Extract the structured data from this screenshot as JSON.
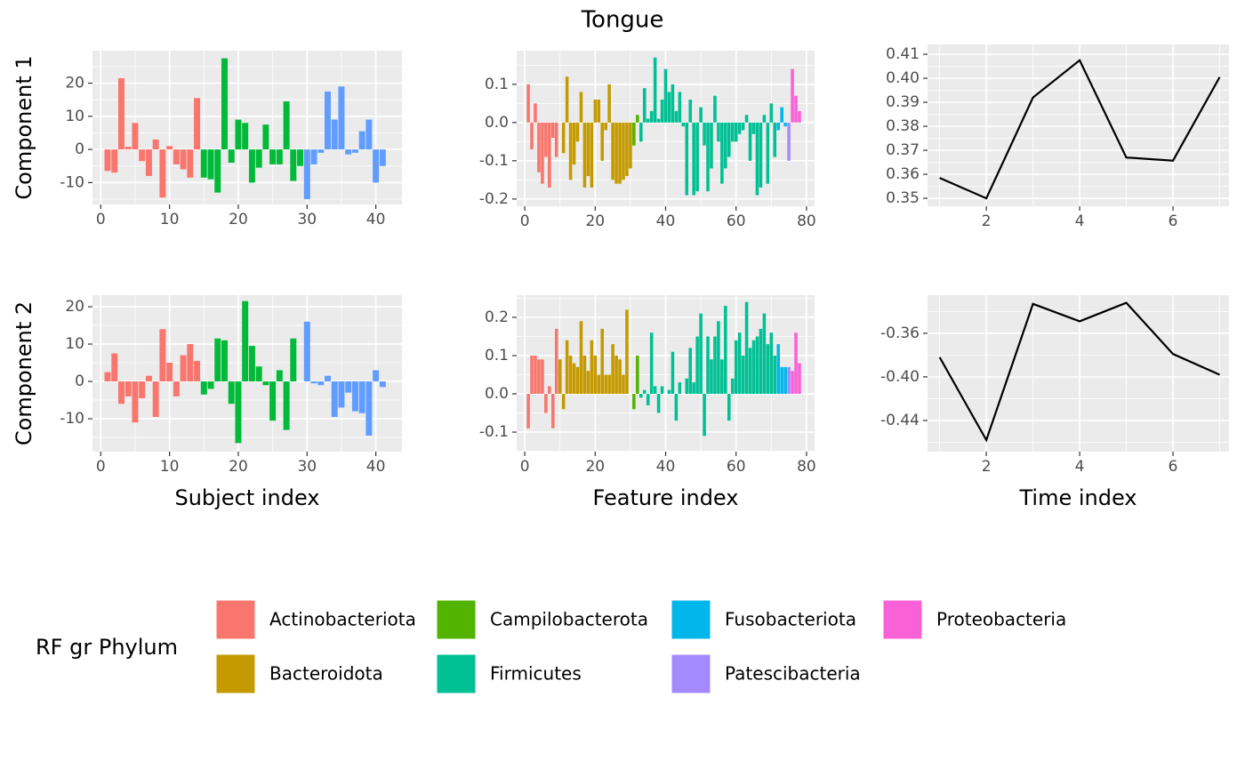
{
  "title": "Tongue",
  "legend": {
    "title": "RF gr Phylum",
    "items": [
      {
        "name": "Actinobacteriota",
        "color": "#F8766D"
      },
      {
        "name": "Bacteroidota",
        "color": "#C49A00"
      },
      {
        "name": "Campilobacterota",
        "color": "#53B400"
      },
      {
        "name": "Firmicutes",
        "color": "#00C094"
      },
      {
        "name": "Fusobacteriota",
        "color": "#00B6EB"
      },
      {
        "name": "Patescibacteria",
        "color": "#A58AFF"
      },
      {
        "name": "Proteobacteria",
        "color": "#FB61D7"
      }
    ]
  },
  "chart_data": [
    {
      "type": "bar",
      "ylabel": "Component 1",
      "x": [
        1,
        2,
        3,
        4,
        5,
        6,
        7,
        8,
        9,
        10,
        11,
        12,
        13,
        14,
        15,
        16,
        17,
        18,
        19,
        20,
        21,
        22,
        23,
        24,
        25,
        26,
        27,
        28,
        29,
        30,
        31,
        32,
        33,
        34,
        35,
        36,
        37,
        38,
        39,
        40,
        41
      ],
      "values": [
        -6.5,
        -7,
        21.5,
        0.8,
        8,
        -3.5,
        -8,
        3,
        -14.5,
        1,
        -4.5,
        -6,
        -8.5,
        15.5,
        -8.5,
        -9,
        -13,
        27.5,
        -4,
        9,
        8,
        -10,
        -5.5,
        7.5,
        -4.5,
        -4.5,
        14.5,
        -9.5,
        -5,
        -15,
        -4.5,
        -1,
        17.5,
        9,
        19,
        -1.5,
        -1,
        5.5,
        9,
        -10,
        -5
      ],
      "colors": [
        "#F8766D",
        "#F8766D",
        "#F8766D",
        "#F8766D",
        "#F8766D",
        "#F8766D",
        "#F8766D",
        "#F8766D",
        "#F8766D",
        "#F8766D",
        "#F8766D",
        "#F8766D",
        "#F8766D",
        "#F8766D",
        "#00BA38",
        "#00BA38",
        "#00BA38",
        "#00BA38",
        "#00BA38",
        "#00BA38",
        "#00BA38",
        "#00BA38",
        "#00BA38",
        "#00BA38",
        "#00BA38",
        "#00BA38",
        "#00BA38",
        "#00BA38",
        "#00BA38",
        "#619CFF",
        "#619CFF",
        "#619CFF",
        "#619CFF",
        "#619CFF",
        "#619CFF",
        "#619CFF",
        "#619CFF",
        "#619CFF",
        "#619CFF",
        "#619CFF",
        "#619CFF"
      ],
      "xlim": [
        -1.2,
        43.8
      ],
      "ylim": [
        -16.6,
        29.8
      ],
      "xticks": [
        0,
        10,
        20,
        30,
        40
      ],
      "yticks": [
        -10,
        0,
        10,
        20
      ],
      "grid": true
    },
    {
      "type": "bar",
      "x": [
        1,
        2,
        3,
        4,
        5,
        6,
        7,
        8,
        9,
        10,
        11,
        12,
        13,
        14,
        15,
        16,
        17,
        18,
        19,
        20,
        21,
        22,
        23,
        24,
        25,
        26,
        27,
        28,
        29,
        30,
        31,
        32,
        33,
        34,
        35,
        36,
        37,
        38,
        39,
        40,
        41,
        42,
        43,
        44,
        45,
        46,
        47,
        48,
        49,
        50,
        51,
        52,
        53,
        54,
        55,
        56,
        57,
        58,
        59,
        60,
        61,
        62,
        63,
        64,
        65,
        66,
        67,
        68,
        69,
        70,
        71,
        72,
        73,
        74,
        75,
        76,
        77,
        78
      ],
      "values": [
        0.1,
        -0.07,
        0.05,
        -0.13,
        -0.16,
        -0.09,
        -0.17,
        -0.04,
        -0.09,
        0.0,
        -0.08,
        0.12,
        -0.15,
        -0.11,
        -0.05,
        0.08,
        -0.17,
        -0.14,
        -0.17,
        0.06,
        0.06,
        -0.1,
        -0.02,
        0.1,
        -0.15,
        -0.16,
        -0.16,
        -0.15,
        -0.14,
        -0.12,
        -0.06,
        0.02,
        -0.05,
        0.09,
        0.01,
        0.03,
        0.17,
        0.01,
        0.06,
        0.14,
        0.08,
        0.1,
        0.03,
        0.08,
        -0.01,
        -0.19,
        0.06,
        -0.19,
        -0.18,
        0.04,
        -0.06,
        -0.18,
        -0.12,
        0.07,
        -0.05,
        -0.16,
        -0.12,
        -0.09,
        -0.05,
        -0.05,
        -0.03,
        -0.02,
        0.02,
        -0.1,
        -0.03,
        -0.19,
        -0.17,
        0.02,
        -0.16,
        0.05,
        -0.09,
        -0.02,
        0.04,
        -0.01,
        -0.1,
        0.14,
        0.07,
        0.03
      ],
      "colors": [
        "#F8766D",
        "#F8766D",
        "#F8766D",
        "#F8766D",
        "#F8766D",
        "#F8766D",
        "#F8766D",
        "#F8766D",
        "#F8766D",
        "#C49A00",
        "#C49A00",
        "#C49A00",
        "#C49A00",
        "#C49A00",
        "#C49A00",
        "#C49A00",
        "#C49A00",
        "#C49A00",
        "#C49A00",
        "#C49A00",
        "#C49A00",
        "#C49A00",
        "#C49A00",
        "#C49A00",
        "#C49A00",
        "#C49A00",
        "#C49A00",
        "#C49A00",
        "#C49A00",
        "#C49A00",
        "#53B400",
        "#53B400",
        "#00C094",
        "#00C094",
        "#00C094",
        "#00C094",
        "#00C094",
        "#00C094",
        "#00C094",
        "#00C094",
        "#00C094",
        "#00C094",
        "#00C094",
        "#00C094",
        "#00C094",
        "#00C094",
        "#00C094",
        "#00C094",
        "#00C094",
        "#00C094",
        "#00C094",
        "#00C094",
        "#00C094",
        "#00C094",
        "#00C094",
        "#00C094",
        "#00C094",
        "#00C094",
        "#00C094",
        "#00C094",
        "#00C094",
        "#00C094",
        "#00C094",
        "#00C094",
        "#00C094",
        "#00C094",
        "#00C094",
        "#00C094",
        "#00C094",
        "#00C094",
        "#00C094",
        "#00B6EB",
        "#00B6EB",
        "#00B6EB",
        "#A58AFF",
        "#FB61D7",
        "#FB61D7",
        "#FB61D7"
      ],
      "xlim": [
        -2.3,
        82.3
      ],
      "ylim": [
        -0.219,
        0.188
      ],
      "xticks": [
        0,
        20,
        40,
        60,
        80
      ],
      "yticks": [
        -0.2,
        -0.1,
        {
          "value": 0,
          "label": "0.0"
        },
        0.1
      ],
      "grid": true
    },
    {
      "type": "line",
      "x": [
        1,
        2,
        3,
        4,
        5,
        6,
        7
      ],
      "values": [
        0.3585,
        0.35,
        0.392,
        0.4075,
        0.367,
        0.3657,
        0.4005
      ],
      "color": "#000000",
      "xlim": [
        0.74,
        7.2
      ],
      "ylim": [
        0.3467,
        0.4141
      ],
      "xticks": [
        2,
        4,
        6
      ],
      "yticks": [
        0.35,
        0.36,
        0.37,
        0.38,
        0.39,
        {
          "value": 0.4,
          "label": "0.40"
        },
        0.41
      ],
      "grid": true
    },
    {
      "type": "bar",
      "ylabel": "Component 2",
      "xlabel": "Subject index",
      "x": [
        1,
        2,
        3,
        4,
        5,
        6,
        7,
        8,
        9,
        10,
        11,
        12,
        13,
        14,
        15,
        16,
        17,
        18,
        19,
        20,
        21,
        22,
        23,
        24,
        25,
        26,
        27,
        28,
        29,
        30,
        31,
        32,
        33,
        34,
        35,
        36,
        37,
        38,
        39,
        40,
        41
      ],
      "values": [
        2.5,
        7.5,
        -6,
        -4,
        -11,
        -4.5,
        1.5,
        -9.5,
        14,
        5,
        -4,
        7,
        10,
        5.5,
        -3.5,
        -2,
        11.5,
        11,
        -6,
        -16.5,
        21.5,
        9.5,
        4,
        -1,
        -10.5,
        3,
        -13,
        11.5,
        0,
        16,
        -0.5,
        -1,
        1.5,
        -9.5,
        -7,
        -3,
        -8,
        -8.5,
        -14.5,
        3,
        -1.5
      ],
      "colors": [
        "#F8766D",
        "#F8766D",
        "#F8766D",
        "#F8766D",
        "#F8766D",
        "#F8766D",
        "#F8766D",
        "#F8766D",
        "#F8766D",
        "#F8766D",
        "#F8766D",
        "#F8766D",
        "#F8766D",
        "#F8766D",
        "#00BA38",
        "#00BA38",
        "#00BA38",
        "#00BA38",
        "#00BA38",
        "#00BA38",
        "#00BA38",
        "#00BA38",
        "#00BA38",
        "#00BA38",
        "#00BA38",
        "#00BA38",
        "#00BA38",
        "#00BA38",
        "#00BA38",
        "#619CFF",
        "#619CFF",
        "#619CFF",
        "#619CFF",
        "#619CFF",
        "#619CFF",
        "#619CFF",
        "#619CFF",
        "#619CFF",
        "#619CFF",
        "#619CFF",
        "#619CFF"
      ],
      "xlim": [
        -1.2,
        43.8
      ],
      "ylim": [
        -18.8,
        23.1
      ],
      "xticks": [
        0,
        10,
        20,
        30,
        40
      ],
      "yticks": [
        -10,
        0,
        10,
        20
      ],
      "grid": true
    },
    {
      "type": "bar",
      "xlabel": "Feature index",
      "x": [
        1,
        2,
        3,
        4,
        5,
        6,
        7,
        8,
        9,
        10,
        11,
        12,
        13,
        14,
        15,
        16,
        17,
        18,
        19,
        20,
        21,
        22,
        23,
        24,
        25,
        26,
        27,
        28,
        29,
        30,
        31,
        32,
        33,
        34,
        35,
        36,
        37,
        38,
        39,
        40,
        41,
        42,
        43,
        44,
        45,
        46,
        47,
        48,
        49,
        50,
        51,
        52,
        53,
        54,
        55,
        56,
        57,
        58,
        59,
        60,
        61,
        62,
        63,
        64,
        65,
        66,
        67,
        68,
        69,
        70,
        71,
        72,
        73,
        74,
        75,
        76,
        77,
        78
      ],
      "values": [
        -0.09,
        0.1,
        0.1,
        0.09,
        0.09,
        -0.05,
        0.02,
        -0.09,
        0.17,
        0.09,
        -0.04,
        0.14,
        0.1,
        0.08,
        0.07,
        0.19,
        0.1,
        0.06,
        0.14,
        0.1,
        0.05,
        0.17,
        0.05,
        0.05,
        0.13,
        0.1,
        0.09,
        0.05,
        0.22,
        0.0,
        -0.04,
        0.1,
        -0.01,
        0.01,
        -0.03,
        0.16,
        0.02,
        -0.05,
        0.02,
        0.0,
        0.01,
        0.11,
        -0.07,
        0.03,
        0.0,
        0.04,
        0.12,
        0.03,
        0.15,
        0.21,
        -0.11,
        0.15,
        0.09,
        0.15,
        0.19,
        0.09,
        0.23,
        -0.07,
        0.04,
        0.14,
        0.16,
        0.1,
        0.24,
        0.12,
        0.14,
        0.15,
        0.17,
        0.21,
        0.13,
        0.16,
        0.1,
        0.13,
        0.07,
        0.07,
        0.07,
        0.06,
        0.16,
        0.08
      ],
      "colors": [
        "#F8766D",
        "#F8766D",
        "#F8766D",
        "#F8766D",
        "#F8766D",
        "#F8766D",
        "#F8766D",
        "#F8766D",
        "#F8766D",
        "#C49A00",
        "#C49A00",
        "#C49A00",
        "#C49A00",
        "#C49A00",
        "#C49A00",
        "#C49A00",
        "#C49A00",
        "#C49A00",
        "#C49A00",
        "#C49A00",
        "#C49A00",
        "#C49A00",
        "#C49A00",
        "#C49A00",
        "#C49A00",
        "#C49A00",
        "#C49A00",
        "#C49A00",
        "#C49A00",
        "#C49A00",
        "#53B400",
        "#53B400",
        "#00C094",
        "#00C094",
        "#00C094",
        "#00C094",
        "#00C094",
        "#00C094",
        "#00C094",
        "#00C094",
        "#00C094",
        "#00C094",
        "#00C094",
        "#00C094",
        "#00C094",
        "#00C094",
        "#00C094",
        "#00C094",
        "#00C094",
        "#00C094",
        "#00C094",
        "#00C094",
        "#00C094",
        "#00C094",
        "#00C094",
        "#00C094",
        "#00C094",
        "#00C094",
        "#00C094",
        "#00C094",
        "#00C094",
        "#00C094",
        "#00C094",
        "#00C094",
        "#00C094",
        "#00C094",
        "#00C094",
        "#00C094",
        "#00C094",
        "#00C094",
        "#00C094",
        "#00B6EB",
        "#00B6EB",
        "#00B6EB",
        "#A58AFF",
        "#FB61D7",
        "#FB61D7",
        "#FB61D7"
      ],
      "xlim": [
        -2.3,
        82.3
      ],
      "ylim": [
        -0.151,
        0.258
      ],
      "xticks": [
        0,
        20,
        40,
        60,
        80
      ],
      "yticks": [
        -0.1,
        {
          "value": 0,
          "label": "0.0"
        },
        0.1,
        0.2
      ],
      "grid": true
    },
    {
      "type": "line",
      "xlabel": "Time index",
      "x": [
        1,
        2,
        3,
        4,
        5,
        6,
        7
      ],
      "values": [
        -0.382,
        -0.458,
        -0.333,
        -0.349,
        -0.332,
        -0.379,
        -0.398
      ],
      "color": "#000000",
      "xlim": [
        0.74,
        7.2
      ],
      "ylim": [
        -0.4686,
        -0.325
      ],
      "xticks": [
        2,
        4,
        6
      ],
      "yticks": [
        -0.44,
        {
          "value": -0.4,
          "label": "-0.40"
        },
        -0.36
      ],
      "grid": true
    }
  ]
}
